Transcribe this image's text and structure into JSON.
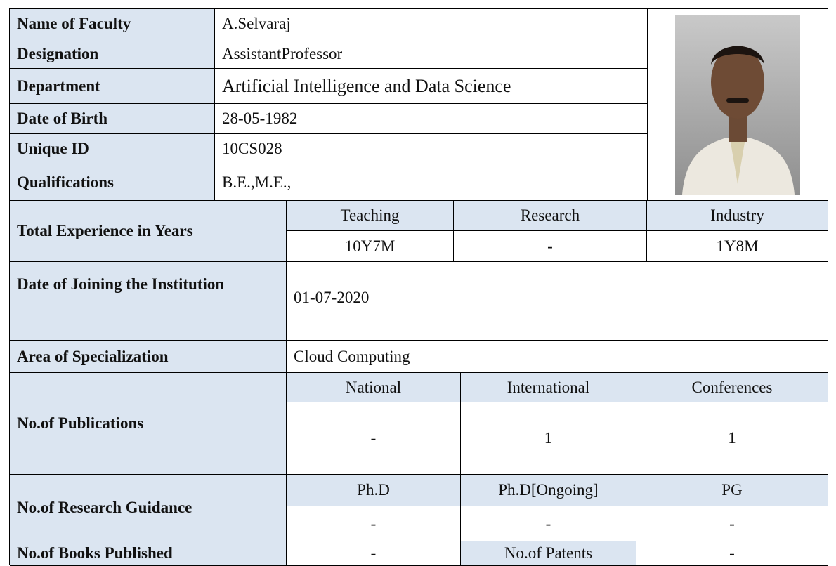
{
  "profile": {
    "rows": [
      {
        "label": "Name of Faculty",
        "value": "A.Selvaraj"
      },
      {
        "label": "Designation",
        "value": "AssistantProfessor"
      },
      {
        "label": "Department",
        "value": "Artificial Intelligence and Data Science"
      },
      {
        "label": "Date of Birth",
        "value": "28-05-1982"
      },
      {
        "label": "Unique ID",
        "value": "10CS028"
      },
      {
        "label": "Qualifications",
        "value": "B.E.,M.E.,"
      }
    ],
    "experience": {
      "label": "Total Experience in Years",
      "headers": [
        "Teaching",
        "Research",
        "Industry"
      ],
      "values": [
        "10Y7M",
        "-",
        "1Y8M"
      ]
    },
    "joining": {
      "label": "Date of Joining the Institution",
      "value": "01-07-2020"
    },
    "specialization": {
      "label": "Area of Specialization",
      "value": "Cloud Computing"
    },
    "publications": {
      "label": "No.of Publications",
      "headers": [
        "National",
        "International",
        "Conferences"
      ],
      "values": [
        "-",
        1,
        1
      ]
    },
    "guidance": {
      "label": "No.of Research Guidance",
      "headers": [
        "Ph.D",
        "Ph.D[Ongoing]",
        "PG"
      ],
      "values": [
        "-",
        "-",
        "-"
      ]
    },
    "books": {
      "label": "No.of Books Published",
      "value": "-",
      "patents_label": "No.of Patents",
      "patents_value": "-"
    }
  }
}
